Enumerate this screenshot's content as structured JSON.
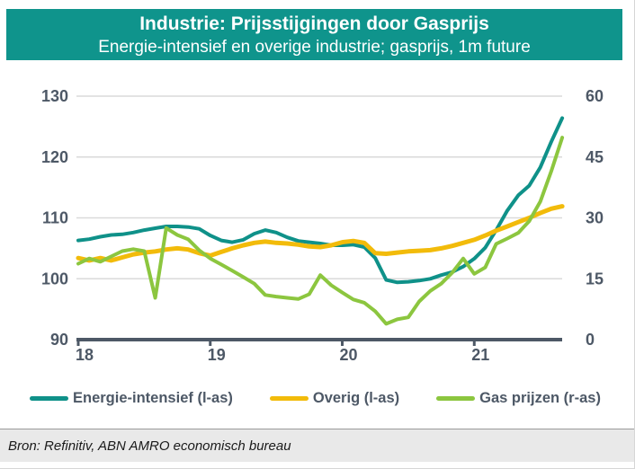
{
  "header": {
    "title": "Industrie: Prijsstijgingen door Gasprijs",
    "subtitle": "Energie-intensief en overige industrie; gasprijs, 1m future"
  },
  "footer": {
    "source": "Bron: Refinitiv, ABN AMRO economisch bureau"
  },
  "colors": {
    "header_bg": "#0f948c",
    "teal_line": "#0f9189",
    "yellow_line": "#f2bb0a",
    "green_line": "#8cc63f",
    "axis_text": "#4d5866",
    "axis_line": "#4d5866",
    "gridline": "#dadada",
    "footer_bg": "#e9e9e9"
  },
  "chart_data": {
    "type": "line",
    "title": "Industrie: Prijsstijgingen door Gasprijs",
    "subtitle": "Energie-intensief en overige industrie; gasprijs, 1m future",
    "x_start": "2018-01",
    "x_frequency": "monthly",
    "x_tick_labels": [
      "18",
      "19",
      "20",
      "21"
    ],
    "x_tick_months": [
      0,
      12,
      24,
      36
    ],
    "left_axis": {
      "range": [
        90,
        130
      ],
      "ticks": [
        90,
        100,
        110,
        120,
        130
      ]
    },
    "right_axis": {
      "range": [
        0,
        60
      ],
      "ticks": [
        0,
        15,
        30,
        45,
        60
      ]
    },
    "grid": "horizontal",
    "legend_position": "bottom",
    "series": [
      {
        "name": "Energie-intensief (l-as)",
        "axis": "left",
        "color": "#0f9189",
        "values": [
          106.3,
          106.5,
          106.9,
          107.2,
          107.3,
          107.6,
          108.0,
          108.3,
          108.6,
          108.6,
          108.5,
          108.2,
          107.1,
          106.3,
          106.0,
          106.4,
          107.4,
          108.0,
          107.6,
          106.8,
          106.2,
          106.0,
          105.8,
          105.5,
          105.5,
          105.6,
          105.2,
          103.4,
          99.8,
          99.4,
          99.5,
          99.7,
          100.0,
          100.6,
          101.1,
          102.0,
          103.3,
          105.1,
          108.0,
          111.2,
          113.7,
          115.3,
          118.3,
          122.5,
          126.4
        ]
      },
      {
        "name": "Overig (l-as)",
        "axis": "left",
        "color": "#f2bb0a",
        "values": [
          103.4,
          103.0,
          103.4,
          103.0,
          103.5,
          104.0,
          104.3,
          104.5,
          104.8,
          105.0,
          104.8,
          104.2,
          103.8,
          104.4,
          105.0,
          105.5,
          105.9,
          106.1,
          105.9,
          105.8,
          105.6,
          105.3,
          105.2,
          105.5,
          106.0,
          106.2,
          105.9,
          104.2,
          104.1,
          104.3,
          104.5,
          104.6,
          104.7,
          105.0,
          105.4,
          105.9,
          106.4,
          107.1,
          107.9,
          108.6,
          109.3,
          110.0,
          110.8,
          111.5,
          111.9
        ]
      },
      {
        "name": "Gas prijzen (r-as)",
        "axis": "right",
        "color": "#8cc63f",
        "values": [
          18.7,
          20.0,
          19.2,
          20.5,
          21.8,
          22.3,
          21.8,
          10.3,
          27.5,
          25.8,
          24.7,
          22.0,
          20.0,
          18.5,
          17.0,
          15.4,
          13.8,
          11.0,
          10.6,
          10.3,
          10.0,
          11.2,
          15.9,
          13.4,
          11.6,
          9.9,
          9.1,
          7.0,
          3.9,
          5.0,
          5.5,
          9.4,
          12.0,
          13.8,
          16.5,
          20.0,
          16.2,
          17.8,
          23.6,
          24.9,
          26.3,
          29.2,
          34.0,
          41.5,
          49.8
        ]
      }
    ]
  }
}
